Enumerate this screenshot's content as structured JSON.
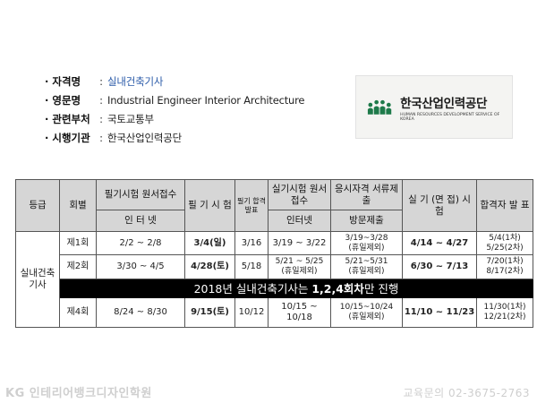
{
  "info": [
    {
      "key": "자격명",
      "value": "실내건축기사"
    },
    {
      "key": "영문명",
      "value": "Industrial Engineer Interior Architecture"
    },
    {
      "key": "관련부처",
      "value": "국토교통부"
    },
    {
      "key": "시행기관",
      "value": "한국산업인력공단"
    }
  ],
  "colon": ":",
  "logo": {
    "korean": "한국산업인력공단",
    "english": "HUMAN RESOURCES DEVELOPMENT SERVICE OF KOREA"
  },
  "table": {
    "headers": {
      "grade": "등급",
      "round": "회별",
      "written_apply": "필기시험 원서접수",
      "written_apply_sub": "인 터 넷",
      "written_exam": "필 기 시 험",
      "written_result": "필기 합격 발표",
      "practical_apply": "실기시험 원서접수",
      "practical_apply_sub": "인터넷",
      "docs": "응시자격 서류제출",
      "docs_sub": "방문제출",
      "practical_exam": "실 기 (면 접) 시 험",
      "final_result": "합격자 발 표"
    },
    "category": "실내건축 기사",
    "rows": [
      {
        "round": "제1회",
        "written_apply": "2/2 ~ 2/8",
        "written_exam": "3/4(일)",
        "written_result": "3/16",
        "practical_apply": "3/19 ~ 3/22",
        "docs_main": "3/19~3/28",
        "docs_note": "(휴일제외)",
        "practical_exam": "4/14 ~ 4/27",
        "final_1": "5/4(1차)",
        "final_2": "5/25(2차)"
      },
      {
        "round": "제2회",
        "written_apply": "3/30 ~ 4/5",
        "written_exam": "4/28(토)",
        "written_result": "5/18",
        "practical_apply_main": "5/21 ~ 5/25",
        "practical_apply_note": "(휴일제외)",
        "docs_main": "5/21~5/31",
        "docs_note": "(휴일제외)",
        "practical_exam": "6/30 ~ 7/13",
        "final_1": "7/20(1차)",
        "final_2": "8/17(2차)"
      },
      {
        "round": "제4회",
        "written_apply": "8/24 ~ 8/30",
        "written_exam": "9/15(토)",
        "written_result": "10/12",
        "practical_apply": "10/15 ~ 10/18",
        "docs_main": "10/15~10/24",
        "docs_note": "(휴일제외)",
        "practical_exam": "11/10 ~ 11/23",
        "final_1": "11/30(1차)",
        "final_2": "12/21(2차)"
      }
    ],
    "banner": {
      "prefix": "2018년 실내건축기사는 ",
      "bold": "1,2,4회차",
      "suffix": "만 진행"
    }
  },
  "footer": {
    "left": "KG 인테리어뱅크디자인학원",
    "right": "교육문의 02-3675-2763"
  },
  "colors": {
    "blue": "#2a4a8a",
    "red": "#b22222",
    "header_bg": "#d6d6d6",
    "banner_bg": "#000000"
  }
}
